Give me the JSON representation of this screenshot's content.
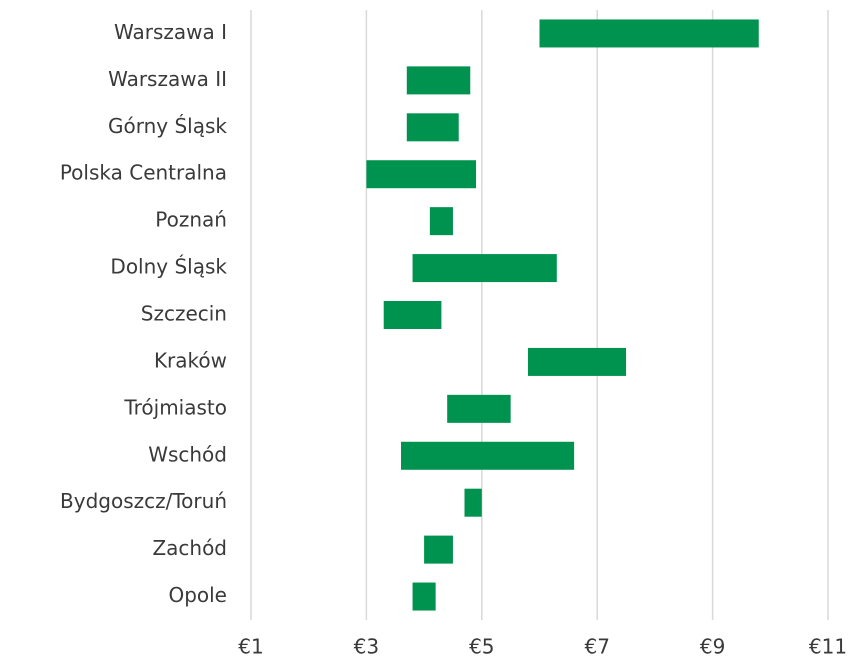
{
  "chart_data": {
    "type": "range-bar",
    "categories": [
      "Warszawa I",
      "Warszawa II",
      "Górny Śląsk",
      "Polska Centralna",
      "Poznań",
      "Dolny Śląsk",
      "Szczecin",
      "Kraków",
      "Trójmiasto",
      "Wschód",
      "Bydgoszcz/Toruń",
      "Zachód",
      "Opole"
    ],
    "low": [
      6.0,
      3.7,
      3.7,
      3.0,
      4.1,
      3.8,
      3.3,
      5.8,
      4.4,
      3.6,
      4.7,
      4.0,
      3.8
    ],
    "high": [
      9.8,
      4.8,
      4.6,
      4.9,
      4.5,
      6.3,
      4.3,
      7.5,
      5.5,
      6.6,
      5.0,
      4.5,
      4.2
    ],
    "color": "#00924f",
    "xlim": [
      1,
      11
    ],
    "xticks": [
      {
        "value": 1,
        "label": "€1"
      },
      {
        "value": 3,
        "label": "€3"
      },
      {
        "value": 5,
        "label": "€5"
      },
      {
        "value": 7,
        "label": "€7"
      },
      {
        "value": 9,
        "label": "€9"
      },
      {
        "value": 11,
        "label": "€11"
      }
    ],
    "grid": true
  }
}
